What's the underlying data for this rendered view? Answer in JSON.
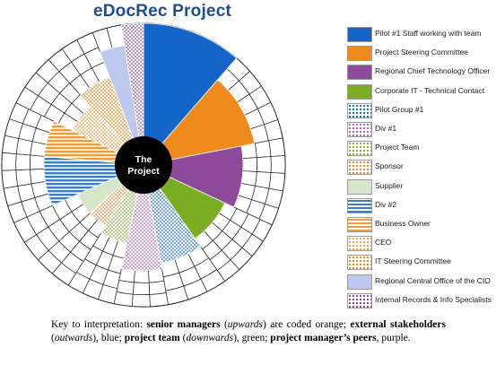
{
  "title": "eDocRec Project",
  "center_label": "The Project",
  "stakeholders": [
    {
      "id": "pilot1",
      "label": "Pilot #1 Staff working with team",
      "color": "#1565c8",
      "pattern": "solid"
    },
    {
      "id": "steering",
      "label": "Project Steering Committee",
      "color": "#f08a1c",
      "pattern": "solid"
    },
    {
      "id": "rcto",
      "label": "Regional Chief Technology Officer",
      "color": "#8e4a9a",
      "pattern": "solid"
    },
    {
      "id": "corpit",
      "label": "Corporate IT - Technical Contact",
      "color": "#79ae22",
      "pattern": "solid"
    },
    {
      "id": "pg1",
      "label": "Pilot Group #1",
      "color": "#1f6fd0",
      "pattern": "dots"
    },
    {
      "id": "div1",
      "label": "Div #1",
      "color": "#b06ab8",
      "pattern": "dots"
    },
    {
      "id": "team",
      "label": "Project Team",
      "color": "#86b43c",
      "pattern": "dots"
    },
    {
      "id": "sponsor",
      "label": "Sponsor",
      "color": "#e8883a",
      "pattern": "dots"
    },
    {
      "id": "supplier",
      "label": "Supplier",
      "color": "#d6e6c8",
      "pattern": "solid"
    },
    {
      "id": "div2",
      "label": "Div #2",
      "color": "#3a7cc8",
      "pattern": "hlines"
    },
    {
      "id": "owner",
      "label": "Business Owner",
      "color": "#f09a3c",
      "pattern": "hlines"
    },
    {
      "id": "ceo",
      "label": "CEO",
      "color": "#f0a050",
      "pattern": "dots"
    },
    {
      "id": "itsteer",
      "label": "IT Steering Committee",
      "color": "#e88a20",
      "pattern": "dots"
    },
    {
      "id": "rco",
      "label": "Regional Central Office of the CIO",
      "color": "#bcc8ee",
      "pattern": "solid"
    },
    {
      "id": "irs",
      "label": "Internal Records & Info Specialists",
      "color": "#8a4e98",
      "pattern": "dots"
    }
  ],
  "caption": {
    "segments": [
      {
        "text": "Key to interpretation: ",
        "bold": false,
        "italic": false
      },
      {
        "text": "senior managers",
        "bold": true,
        "italic": false
      },
      {
        "text": " (",
        "bold": false,
        "italic": false
      },
      {
        "text": "upwards",
        "bold": false,
        "italic": true
      },
      {
        "text": ") are coded orange; ",
        "bold": false,
        "italic": false
      },
      {
        "text": "external stakeholders",
        "bold": true,
        "italic": false
      },
      {
        "text": " (",
        "bold": false,
        "italic": false
      },
      {
        "text": "outwards",
        "bold": false,
        "italic": true
      },
      {
        "text": "), blue; ",
        "bold": false,
        "italic": false
      },
      {
        "text": "project team",
        "bold": true,
        "italic": false
      },
      {
        "text": " (",
        "bold": false,
        "italic": false
      },
      {
        "text": "downwards",
        "bold": false,
        "italic": true
      },
      {
        "text": "), green; ",
        "bold": false,
        "italic": false
      },
      {
        "text": "project manager’s peers",
        "bold": true,
        "italic": false
      },
      {
        "text": ", purple.",
        "bold": false,
        "italic": false
      }
    ]
  }
}
